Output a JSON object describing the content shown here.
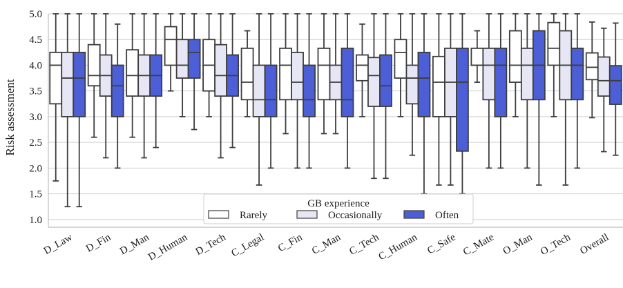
{
  "chart_data": {
    "type": "box",
    "ylabel": "Risk assessment",
    "ylim": [
      0.85,
      5.0
    ],
    "yticks": [
      "1.0",
      "1.5",
      "2.0",
      "2.5",
      "3.0",
      "3.5",
      "4.0",
      "4.5",
      "5.0"
    ],
    "grid": true,
    "legend": {
      "title": "GB experience",
      "placement": "bottom-center"
    },
    "categories": [
      "D_Law",
      "D_Fin",
      "D_Man",
      "D_Human",
      "D_Tech",
      "C_Legal",
      "C_Fin",
      "C_Man",
      "C_Tech",
      "C_Human",
      "C_Safe",
      "C_Mate",
      "O_Man",
      "O_Tech",
      "Overall"
    ],
    "series": [
      {
        "name": "Rarely",
        "color": "#ffffff",
        "boxes": [
          {
            "whislo": 1.75,
            "q1": 3.25,
            "med": 4.0,
            "q3": 4.25,
            "whishi": 5.0
          },
          {
            "whislo": 2.6,
            "q1": 3.6,
            "med": 3.8,
            "q3": 4.4,
            "whishi": 5.0
          },
          {
            "whislo": 2.6,
            "q1": 3.4,
            "med": 3.8,
            "q3": 4.3,
            "whishi": 5.0
          },
          {
            "whislo": 3.5,
            "q1": 4.0,
            "med": 4.5,
            "q3": 4.75,
            "whishi": 5.0
          },
          {
            "whislo": 3.0,
            "q1": 3.5,
            "med": 4.0,
            "q3": 4.5,
            "whishi": 5.0
          },
          {
            "whislo": 3.0,
            "q1": 3.33,
            "med": 3.67,
            "q3": 4.33,
            "whishi": 4.67
          },
          {
            "whislo": 2.67,
            "q1": 3.33,
            "med": 4.0,
            "q3": 4.33,
            "whishi": 5.0
          },
          {
            "whislo": 2.67,
            "q1": 3.33,
            "med": 4.0,
            "q3": 4.33,
            "whishi": 5.0
          },
          {
            "whislo": 3.0,
            "q1": 3.7,
            "med": 4.0,
            "q3": 4.2,
            "whishi": 4.8
          },
          {
            "whislo": 3.0,
            "q1": 3.75,
            "med": 4.25,
            "q3": 4.5,
            "whishi": 5.0
          },
          {
            "whislo": 1.67,
            "q1": 3.0,
            "med": 3.67,
            "q3": 4.17,
            "whishi": 5.0
          },
          {
            "whislo": 3.67,
            "q1": 4.0,
            "med": 4.0,
            "q3": 4.33,
            "whishi": 4.67
          },
          {
            "whislo": 3.0,
            "q1": 3.67,
            "med": 4.0,
            "q3": 4.67,
            "whishi": 5.0
          },
          {
            "whislo": 3.0,
            "q1": 4.0,
            "med": 4.33,
            "q3": 4.83,
            "whishi": 5.0
          },
          {
            "whislo": 2.98,
            "q1": 3.72,
            "med": 3.96,
            "q3": 4.24,
            "whishi": 4.84
          }
        ]
      },
      {
        "name": "Occasionally",
        "color": "#e6e6f5",
        "boxes": [
          {
            "whislo": 1.25,
            "q1": 3.0,
            "med": 3.75,
            "q3": 4.25,
            "whishi": 5.0
          },
          {
            "whislo": 2.2,
            "q1": 3.4,
            "med": 3.8,
            "q3": 4.2,
            "whishi": 5.0
          },
          {
            "whislo": 2.2,
            "q1": 3.4,
            "med": 3.8,
            "q3": 4.2,
            "whishi": 5.0
          },
          {
            "whislo": 3.0,
            "q1": 3.75,
            "med": 4.0,
            "q3": 4.5,
            "whishi": 5.0
          },
          {
            "whislo": 2.2,
            "q1": 3.4,
            "med": 3.8,
            "q3": 4.4,
            "whishi": 5.0
          },
          {
            "whislo": 1.67,
            "q1": 3.0,
            "med": 3.33,
            "q3": 4.0,
            "whishi": 5.0
          },
          {
            "whislo": 2.0,
            "q1": 3.33,
            "med": 3.67,
            "q3": 4.25,
            "whishi": 5.0
          },
          {
            "whislo": 2.67,
            "q1": 3.33,
            "med": 3.67,
            "q3": 4.0,
            "whishi": 5.0
          },
          {
            "whislo": 1.8,
            "q1": 3.2,
            "med": 3.8,
            "q3": 4.15,
            "whishi": 5.0
          },
          {
            "whislo": 2.25,
            "q1": 3.25,
            "med": 3.75,
            "q3": 4.0,
            "whishi": 5.0
          },
          {
            "whislo": 1.67,
            "q1": 3.0,
            "med": 3.67,
            "q3": 4.33,
            "whishi": 5.0
          },
          {
            "whislo": 2.0,
            "q1": 3.33,
            "med": 4.0,
            "q3": 4.33,
            "whishi": 5.0
          },
          {
            "whislo": 2.0,
            "q1": 3.33,
            "med": 4.0,
            "q3": 4.33,
            "whishi": 5.0
          },
          {
            "whislo": 1.67,
            "q1": 3.33,
            "med": 4.0,
            "q3": 4.67,
            "whishi": 5.0
          },
          {
            "whislo": 2.32,
            "q1": 3.4,
            "med": 3.7,
            "q3": 4.16,
            "whishi": 4.72
          }
        ]
      },
      {
        "name": "Often",
        "color": "#4c5fd6",
        "boxes": [
          {
            "whislo": 1.25,
            "q1": 3.0,
            "med": 3.75,
            "q3": 4.25,
            "whishi": 5.0
          },
          {
            "whislo": 2.0,
            "q1": 3.0,
            "med": 3.6,
            "q3": 4.0,
            "whishi": 4.8
          },
          {
            "whislo": 2.4,
            "q1": 3.4,
            "med": 3.8,
            "q3": 4.2,
            "whishi": 5.0
          },
          {
            "whislo": 2.75,
            "q1": 3.75,
            "med": 4.25,
            "q3": 4.5,
            "whishi": 5.0
          },
          {
            "whislo": 2.4,
            "q1": 3.4,
            "med": 3.8,
            "q3": 4.2,
            "whishi": 5.0
          },
          {
            "whislo": 2.0,
            "q1": 3.0,
            "med": 3.33,
            "q3": 4.0,
            "whishi": 5.0
          },
          {
            "whislo": 2.0,
            "q1": 3.0,
            "med": 3.33,
            "q3": 4.0,
            "whishi": 5.0
          },
          {
            "whislo": 2.0,
            "q1": 3.0,
            "med": 3.33,
            "q3": 4.33,
            "whishi": 5.0
          },
          {
            "whislo": 1.8,
            "q1": 3.2,
            "med": 3.6,
            "q3": 4.2,
            "whishi": 5.0
          },
          {
            "whislo": 1.5,
            "q1": 3.0,
            "med": 3.75,
            "q3": 4.25,
            "whishi": 5.0
          },
          {
            "whislo": 1.5,
            "q1": 2.33,
            "med": 3.67,
            "q3": 4.33,
            "whishi": 5.0
          },
          {
            "whislo": 2.0,
            "q1": 3.0,
            "med": 4.0,
            "q3": 4.33,
            "whishi": 5.0
          },
          {
            "whislo": 1.67,
            "q1": 3.33,
            "med": 4.0,
            "q3": 4.67,
            "whishi": 5.0
          },
          {
            "whislo": 2.0,
            "q1": 3.33,
            "med": 4.0,
            "q3": 4.33,
            "whishi": 5.0
          },
          {
            "whislo": 2.25,
            "q1": 3.24,
            "med": 3.7,
            "q3": 3.99,
            "whishi": 4.82
          }
        ]
      }
    ]
  }
}
